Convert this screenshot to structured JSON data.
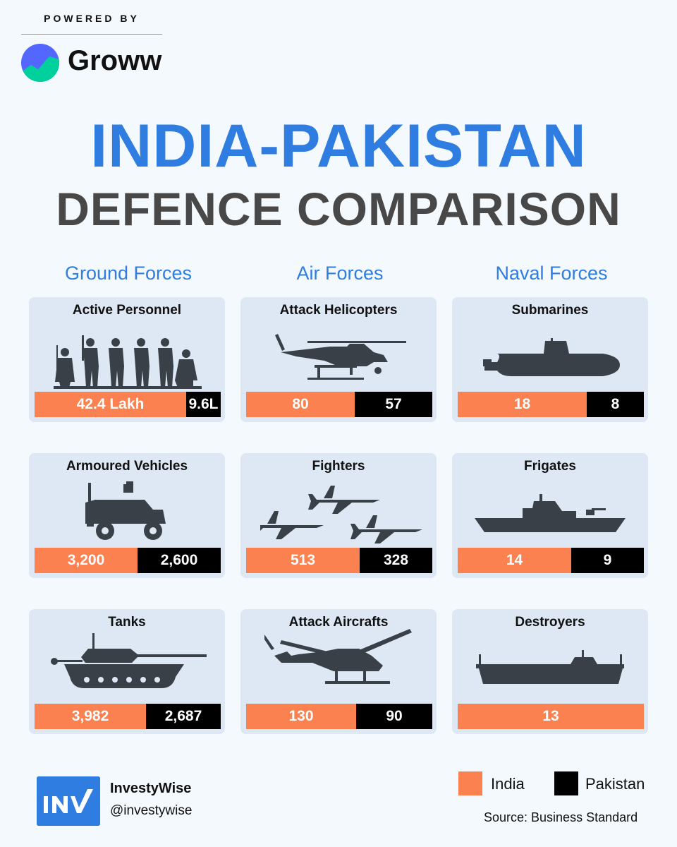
{
  "header": {
    "powered_by": "POWERED BY",
    "brand": "Groww"
  },
  "title_line1": "INDIA-PAKISTAN",
  "title_line2": "DEFENCE COMPARISON",
  "colors": {
    "india": "#fb8150",
    "pakistan": "#000000",
    "accent": "#2f7de1",
    "card_bg": "#dde8f4"
  },
  "chart_data": {
    "type": "bar",
    "title": "INDIA-PAKISTAN DEFENCE COMPARISON",
    "series_names": [
      "India",
      "Pakistan"
    ],
    "groups": [
      {
        "name": "Ground Forces",
        "items": [
          {
            "category": "Active Personnel",
            "icon": "soldiers-icon",
            "india": 42.4,
            "pakistan": 9.6,
            "india_label": "42.4 Lakh",
            "pakistan_label": "9.6L"
          },
          {
            "category": "Armoured Vehicles",
            "icon": "armoured-vehicle-icon",
            "india": 3200,
            "pakistan": 2600,
            "india_label": "3,200",
            "pakistan_label": "2,600"
          },
          {
            "category": "Tanks",
            "icon": "tank-icon",
            "india": 3982,
            "pakistan": 2687,
            "india_label": "3,982",
            "pakistan_label": "2,687"
          }
        ]
      },
      {
        "name": "Air Forces",
        "items": [
          {
            "category": "Attack Helicopters",
            "icon": "attack-helicopter-icon",
            "india": 80,
            "pakistan": 57,
            "india_label": "80",
            "pakistan_label": "57"
          },
          {
            "category": "Fighters",
            "icon": "fighter-jets-icon",
            "india": 513,
            "pakistan": 328,
            "india_label": "513",
            "pakistan_label": "328"
          },
          {
            "category": "Attack Aircrafts",
            "icon": "helicopter-icon",
            "india": 130,
            "pakistan": 90,
            "india_label": "130",
            "pakistan_label": "90"
          }
        ]
      },
      {
        "name": "Naval Forces",
        "items": [
          {
            "category": "Submarines",
            "icon": "submarine-icon",
            "india": 18,
            "pakistan": 8,
            "india_label": "18",
            "pakistan_label": "8"
          },
          {
            "category": "Frigates",
            "icon": "frigate-icon",
            "india": 14,
            "pakistan": 9,
            "india_label": "14",
            "pakistan_label": "9"
          },
          {
            "category": "Destroyers",
            "icon": "destroyer-icon",
            "india": 13,
            "pakistan": 0,
            "india_label": "13",
            "pakistan_label": ""
          }
        ]
      }
    ],
    "legend": [
      "India",
      "Pakistan"
    ],
    "legend_position": "bottom-right"
  },
  "footer": {
    "brand_name": "InvestyWise",
    "handle": "@investywise",
    "source": "Source: Business Standard",
    "logo_text": "INV"
  }
}
